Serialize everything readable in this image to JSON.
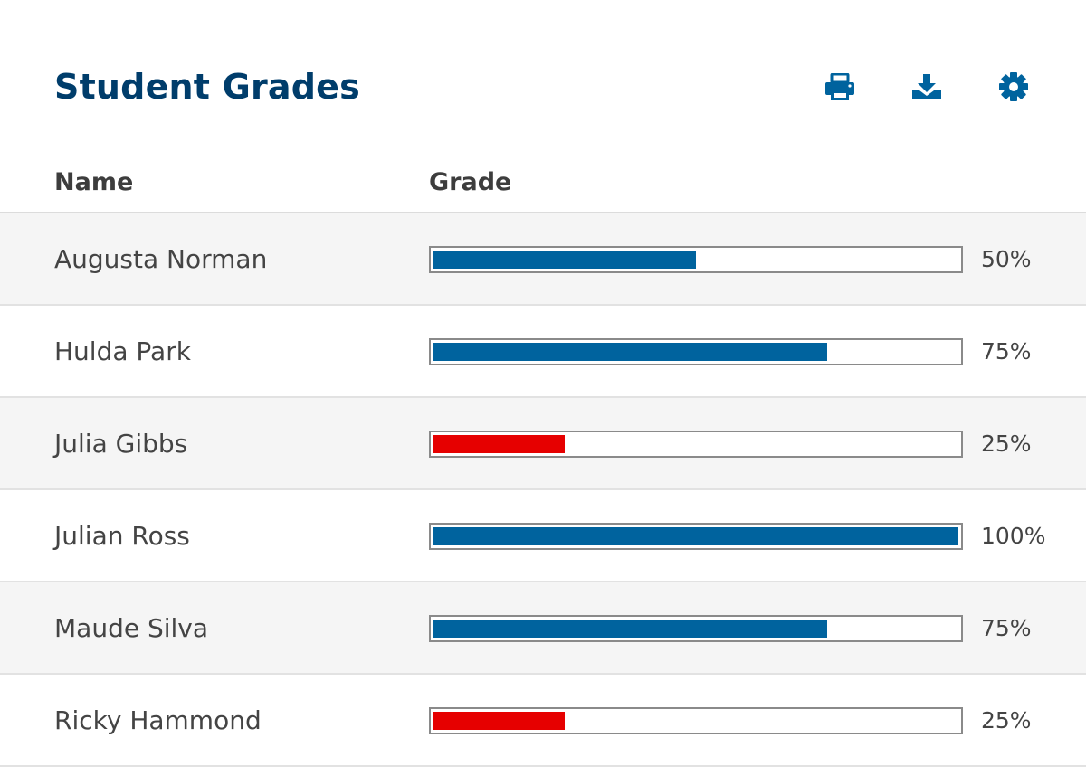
{
  "header": {
    "title": "Student Grades",
    "actions": [
      {
        "icon": "print-icon",
        "label": "Print"
      },
      {
        "icon": "download-icon",
        "label": "Download"
      },
      {
        "icon": "gear-icon",
        "label": "Settings"
      }
    ]
  },
  "colors": {
    "title": "#003d6b",
    "icon": "#00639e",
    "bar_pass": "#00639e",
    "bar_fail": "#e60000",
    "row_alt": "#f5f5f5"
  },
  "table": {
    "columns": [
      "Name",
      "Grade"
    ],
    "rows": [
      {
        "name": "Augusta Norman",
        "grade": 0.5,
        "grade_label": "50%",
        "status": "pass"
      },
      {
        "name": "Hulda Park",
        "grade": 0.75,
        "grade_label": "75%",
        "status": "pass"
      },
      {
        "name": "Julia Gibbs",
        "grade": 0.25,
        "grade_label": "25%",
        "status": "fail"
      },
      {
        "name": "Julian Ross",
        "grade": 1.0,
        "grade_label": "100%",
        "status": "pass"
      },
      {
        "name": "Maude Silva",
        "grade": 0.75,
        "grade_label": "75%",
        "status": "pass"
      },
      {
        "name": "Ricky Hammond",
        "grade": 0.25,
        "grade_label": "25%",
        "status": "fail"
      }
    ]
  }
}
